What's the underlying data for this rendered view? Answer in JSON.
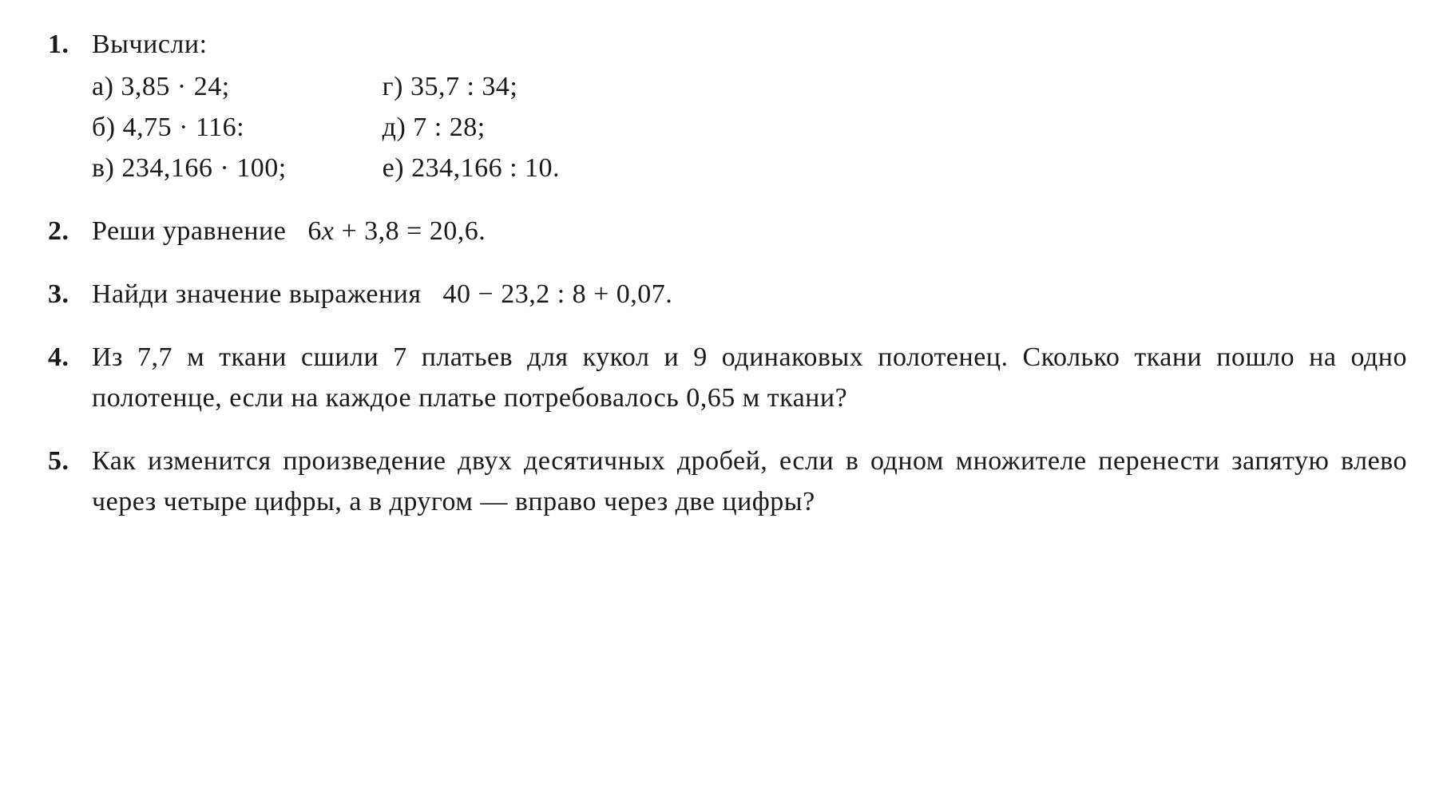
{
  "font": {
    "family": "Times New Roman serif",
    "size_pt": 34,
    "color": "#1a1a1a",
    "background": "#ffffff"
  },
  "problems": [
    {
      "number": "1.",
      "prompt": "Вычисли:",
      "cols": [
        [
          {
            "label": "а)",
            "expr": "3,85 · 24;"
          },
          {
            "label": "б)",
            "expr": "4,75 · 116:"
          },
          {
            "label": "в)",
            "expr": "234,166 · 100;"
          }
        ],
        [
          {
            "label": "г)",
            "expr": "35,7 : 34;"
          },
          {
            "label": "д)",
            "expr": "7 : 28;"
          },
          {
            "label": "е)",
            "expr": "234,166 : 10."
          }
        ]
      ]
    },
    {
      "number": "2.",
      "text_before": "Реши уравнение   ",
      "equation": "6x + 3,8 = 20,6.",
      "equation_var": "x"
    },
    {
      "number": "3.",
      "text_before": "Найди значение выражения   ",
      "equation": "40 − 23,2 : 8 + 0,07."
    },
    {
      "number": "4.",
      "text": "Из 7,7 м ткани сшили 7 платьев для кукол и 9 одинаковых полотенец. Сколько ткани пошло на одно полотенце, если на каждое платье потребовалось 0,65 м ткани?"
    },
    {
      "number": "5.",
      "text": "Как изменится произведение двух десятичных дробей, если в одном множителе перенести запятую влево через четыре цифры, а в другом — вправо через две цифры?"
    }
  ]
}
